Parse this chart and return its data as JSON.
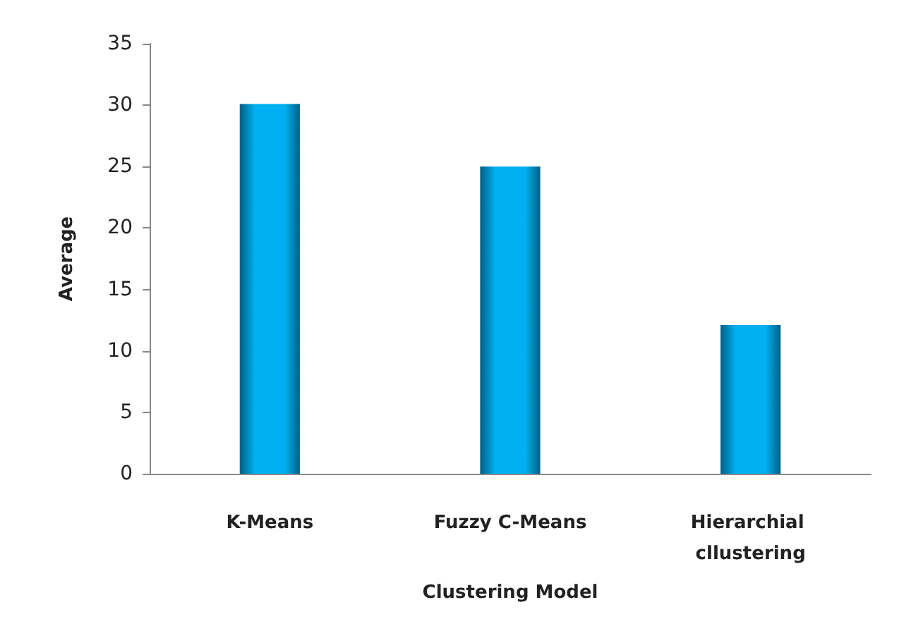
{
  "chart_data": {
    "type": "bar",
    "xlabel": "Clustering Model",
    "ylabel": "Average",
    "categories": [
      "K-Means",
      "Fuzzy C-Means",
      "Hierarchial cllustering"
    ],
    "values": [
      30.1,
      25,
      12.1
    ],
    "color": "#00b0f0",
    "ylim": [
      0,
      35
    ],
    "yticks": [
      0,
      5,
      10,
      15,
      20,
      25,
      30,
      35
    ],
    "grid": false
  }
}
